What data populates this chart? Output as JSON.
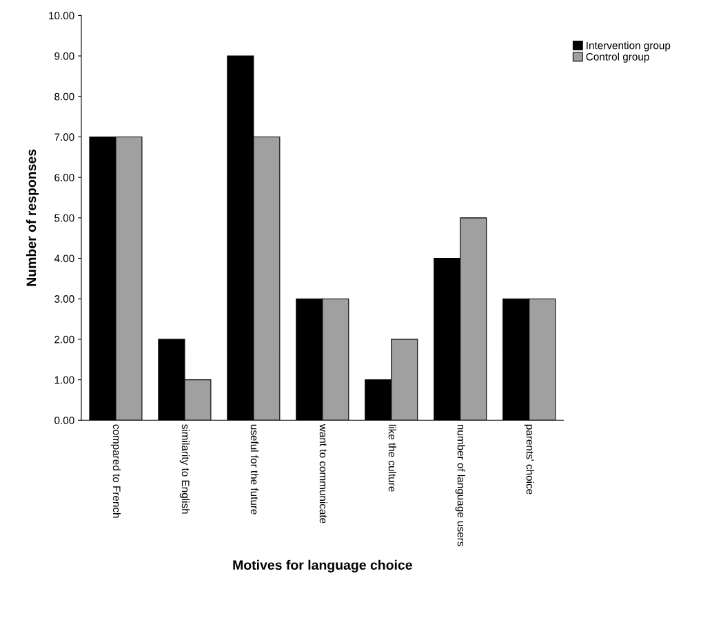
{
  "chart_data": {
    "type": "bar",
    "xlabel": "Motives for language choice",
    "ylabel": "Number of responses",
    "categories": [
      "compared to French",
      "similarity to English",
      "useful for the future",
      "want to communicate",
      "like the culture",
      "number of language users",
      "parents' choice"
    ],
    "series": [
      {
        "name": "Intervention group",
        "color": "#000000",
        "values": [
          7,
          2,
          9,
          3,
          1,
          4,
          3
        ]
      },
      {
        "name": "Control group",
        "color": "#a0a0a0",
        "values": [
          7,
          1,
          7,
          3,
          2,
          5,
          3
        ]
      }
    ],
    "ylim": [
      0,
      10
    ],
    "yticks": [
      {
        "value": 0,
        "label": "0.00"
      },
      {
        "value": 1,
        "label": "1.00"
      },
      {
        "value": 2,
        "label": "2.00"
      },
      {
        "value": 3,
        "label": "3.00"
      },
      {
        "value": 4,
        "label": "4.00"
      },
      {
        "value": 5,
        "label": "5.00"
      },
      {
        "value": 6,
        "label": "6.00"
      },
      {
        "value": 7,
        "label": "7.00"
      },
      {
        "value": 8,
        "label": "8.00"
      },
      {
        "value": 9,
        "label": "9.00"
      },
      {
        "value": 10,
        "label": "10.00"
      }
    ],
    "grid": false,
    "legend": "top right"
  }
}
